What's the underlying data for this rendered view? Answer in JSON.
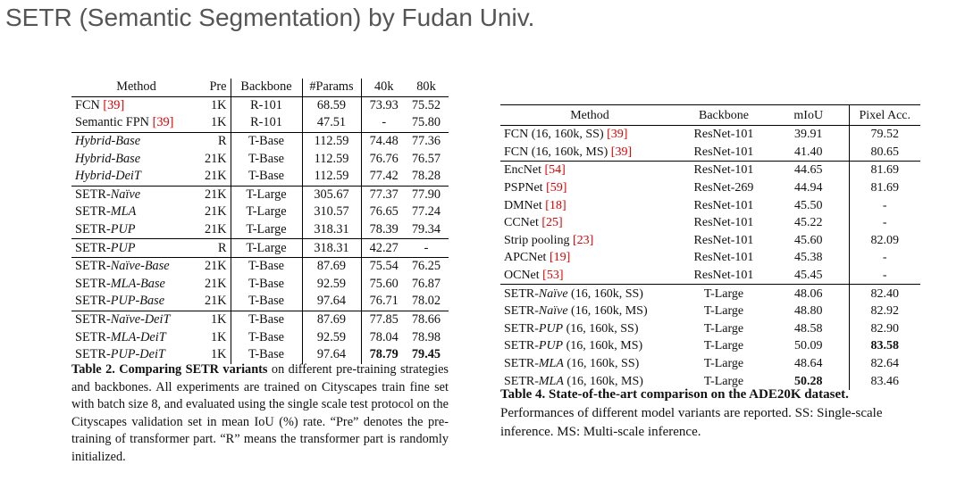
{
  "title": "SETR (Semantic Segmentation) by Fudan Univ.",
  "table2": {
    "headers": [
      "Method",
      "Pre",
      "Backbone",
      "#Params",
      "40k",
      "80k"
    ],
    "rows": [
      {
        "method": {
          "pre": "FCN ",
          "ref": "[39]"
        },
        "cells": [
          "1K",
          "R-101",
          "68.59",
          "73.93",
          "75.52"
        ]
      },
      {
        "method": {
          "pre": "Semantic FPN ",
          "ref": "[39]"
        },
        "cells": [
          "1K",
          "R-101",
          "47.51",
          "-",
          "75.80"
        ]
      },
      {
        "method": {
          "it": "Hybrid-Base"
        },
        "cells": [
          "R",
          "T-Base",
          "112.59",
          "74.48",
          "77.36"
        ]
      },
      {
        "method": {
          "it": "Hybrid-Base"
        },
        "cells": [
          "21K",
          "T-Base",
          "112.59",
          "76.76",
          "76.57"
        ]
      },
      {
        "method": {
          "it": "Hybrid-DeiT"
        },
        "cells": [
          "21K",
          "T-Base",
          "112.59",
          "77.42",
          "78.28"
        ]
      },
      {
        "method": {
          "pre": "SETR-",
          "it": "Naïve"
        },
        "cells": [
          "21K",
          "T-Large",
          "305.67",
          "77.37",
          "77.90"
        ]
      },
      {
        "method": {
          "pre": "SETR-",
          "it": "MLA"
        },
        "cells": [
          "21K",
          "T-Large",
          "310.57",
          "76.65",
          "77.24"
        ]
      },
      {
        "method": {
          "pre": "SETR-",
          "it": "PUP"
        },
        "cells": [
          "21K",
          "T-Large",
          "318.31",
          "78.39",
          "79.34"
        ]
      },
      {
        "method": {
          "pre": "SETR-",
          "it": "PUP"
        },
        "cells": [
          "R",
          "T-Large",
          "318.31",
          "42.27",
          "-"
        ]
      },
      {
        "method": {
          "pre": "SETR-",
          "it": "Naïve-Base"
        },
        "cells": [
          "21K",
          "T-Base",
          "87.69",
          "75.54",
          "76.25"
        ]
      },
      {
        "method": {
          "pre": "SETR-",
          "it": "MLA-Base"
        },
        "cells": [
          "21K",
          "T-Base",
          "92.59",
          "75.60",
          "76.87"
        ]
      },
      {
        "method": {
          "pre": "SETR-",
          "it": "PUP-Base"
        },
        "cells": [
          "21K",
          "T-Base",
          "97.64",
          "76.71",
          "78.02"
        ]
      },
      {
        "method": {
          "pre": "SETR-",
          "it": "Naïve-DeiT"
        },
        "cells": [
          "1K",
          "T-Base",
          "87.69",
          "77.85",
          "78.66"
        ]
      },
      {
        "method": {
          "pre": "SETR-",
          "it": "MLA-DeiT"
        },
        "cells": [
          "1K",
          "T-Base",
          "92.59",
          "78.04",
          "78.98"
        ]
      },
      {
        "method": {
          "pre": "SETR-",
          "it": "PUP-DeiT"
        },
        "cells": [
          "1K",
          "T-Base",
          "97.64",
          "78.79",
          "79.45"
        ]
      }
    ],
    "caption": {
      "label": "Table 2.",
      "bold": "Comparing SETR variants",
      "text": " on different pre-training strategies and backbones. All experiments are trained on Cityscapes train fine set with batch size 8, and evaluated using the single scale test protocol on the Cityscapes validation set in mean IoU (%) rate. “Pre” denotes the pre-training of transformer part. “R” means the transformer part is randomly initialized."
    }
  },
  "table4": {
    "headers": [
      "Method",
      "Backbone",
      "mIoU",
      "Pixel Acc."
    ],
    "rows": [
      {
        "method": {
          "pre": "FCN (16, 160k, SS) ",
          "ref": "[39]"
        },
        "cells": [
          "ResNet-101",
          "39.91",
          "79.52"
        ]
      },
      {
        "method": {
          "pre": "FCN (16, 160k, MS) ",
          "ref": "[39]"
        },
        "cells": [
          "ResNet-101",
          "41.40",
          "80.65"
        ]
      },
      {
        "method": {
          "pre": "EncNet ",
          "ref": "[54]"
        },
        "cells": [
          "ResNet-101",
          "44.65",
          "81.69"
        ]
      },
      {
        "method": {
          "pre": "PSPNet ",
          "ref": "[59]"
        },
        "cells": [
          "ResNet-269",
          "44.94",
          "81.69"
        ]
      },
      {
        "method": {
          "pre": "DMNet ",
          "ref": "[18]"
        },
        "cells": [
          "ResNet-101",
          "45.50",
          "-"
        ]
      },
      {
        "method": {
          "pre": "CCNet ",
          "ref": "[25]"
        },
        "cells": [
          "ResNet-101",
          "45.22",
          "-"
        ]
      },
      {
        "method": {
          "pre": "Strip pooling ",
          "ref": "[23]"
        },
        "cells": [
          "ResNet-101",
          "45.60",
          "82.09"
        ]
      },
      {
        "method": {
          "pre": "APCNet ",
          "ref": "[19]"
        },
        "cells": [
          "ResNet-101",
          "45.38",
          "-"
        ]
      },
      {
        "method": {
          "pre": "OCNet ",
          "ref": "[53]"
        },
        "cells": [
          "ResNet-101",
          "45.45",
          "-"
        ]
      },
      {
        "method": {
          "pre": "SETR-",
          "it": "Naïve",
          "post": " (16, 160k, SS)"
        },
        "cells": [
          "T-Large",
          "48.06",
          "82.40"
        ]
      },
      {
        "method": {
          "pre": "SETR-",
          "it": "Naïve",
          "post": " (16, 160k, MS)"
        },
        "cells": [
          "T-Large",
          "48.80",
          "82.92"
        ]
      },
      {
        "method": {
          "pre": "SETR-",
          "it": "PUP",
          "post": " (16, 160k, SS)"
        },
        "cells": [
          "T-Large",
          "48.58",
          "82.90"
        ]
      },
      {
        "method": {
          "pre": "SETR-",
          "it": "PUP",
          "post": " (16, 160k, MS)"
        },
        "cells": [
          "T-Large",
          "50.09",
          "83.58"
        ]
      },
      {
        "method": {
          "pre": "SETR-",
          "it": "MLA",
          "post": " (16, 160k, SS)"
        },
        "cells": [
          "T-Large",
          "48.64",
          "82.64"
        ]
      },
      {
        "method": {
          "pre": "SETR-",
          "it": "MLA",
          "post": " (16, 160k, MS)"
        },
        "cells": [
          "T-Large",
          "50.28",
          "83.46"
        ]
      }
    ],
    "caption": {
      "label": "Table 4.",
      "bold": "State-of-the-art comparison on the ADE20K dataset.",
      "text": " Performances of different model variants are reported. SS: Single-scale inference. MS: Multi-scale inference."
    }
  }
}
